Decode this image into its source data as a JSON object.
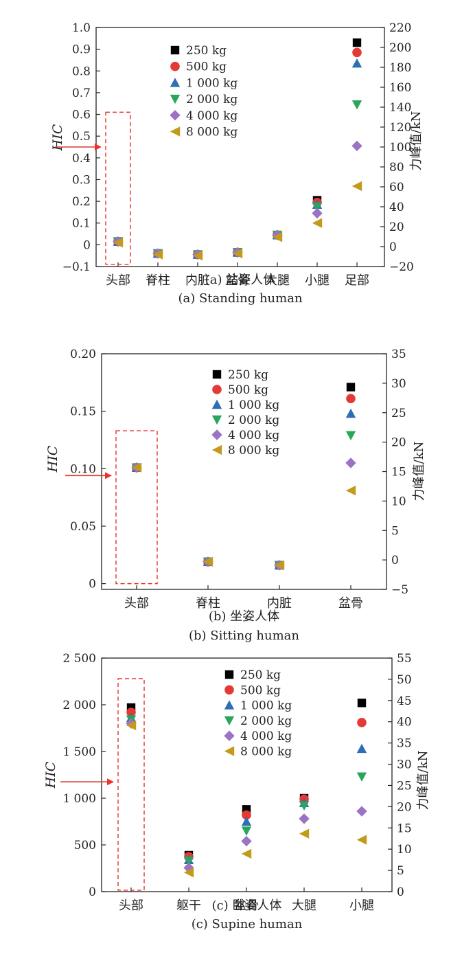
{
  "legend": [
    "250 kg",
    "500 kg",
    "1 000 kg",
    "2 000 kg",
    "4 000 kg",
    "8 000 kg"
  ],
  "marker_colors": [
    "#000000",
    "#e53935",
    "#2f6db5",
    "#2aa55c",
    "#9b72c4",
    "#c49a1c"
  ],
  "marker_shapes": [
    "square",
    "circle",
    "triangle-up",
    "triangle-down",
    "diamond",
    "triangle-left"
  ],
  "highlight_color": "#e8342a",
  "chart_data": [
    {
      "type": "scatter",
      "id": "a",
      "title_cn": "(a) 站姿人体",
      "title_en": "(a) Standing human",
      "ylabel": "HIC",
      "y2label": "力峰值/kN",
      "categories": [
        "头部",
        "脊柱",
        "内脏",
        "盆骨",
        "大腿",
        "小腿",
        "足部"
      ],
      "ylim": [
        -0.1,
        1.0
      ],
      "yticks": [
        -0.1,
        0,
        0.1,
        0.2,
        0.3,
        0.4,
        0.5,
        0.6,
        0.7,
        0.8,
        0.9,
        1.0
      ],
      "ytick_labels": [
        "−0.1",
        "0",
        "0.1",
        "0.2",
        "0.3",
        "0.4",
        "0.5",
        "0.6",
        "0.7",
        "0.8",
        "0.9",
        "1.0"
      ],
      "y2lim": [
        -20,
        220
      ],
      "y2ticks": [
        -20,
        0,
        20,
        40,
        60,
        80,
        100,
        120,
        140,
        160,
        180,
        200,
        220
      ],
      "y2tick_labels": [
        "−20",
        "0",
        "20",
        "40",
        "60",
        "80",
        "100",
        "120",
        "140",
        "160",
        "180",
        "200",
        "220"
      ],
      "arrow_at": 0.45,
      "highlight": {
        "category": 0,
        "y_from": -0.09,
        "y_to": 0.61
      },
      "series": [
        {
          "name": "250 kg",
          "values": [
            0.015,
            -0.04,
            -0.045,
            -0.035,
            0.045,
            0.205,
            0.93
          ]
        },
        {
          "name": "500 kg",
          "values": [
            0.015,
            -0.04,
            -0.045,
            -0.035,
            0.045,
            0.195,
            0.885
          ]
        },
        {
          "name": "1 000 kg",
          "values": [
            0.015,
            -0.04,
            -0.045,
            -0.035,
            0.045,
            0.185,
            0.835
          ]
        },
        {
          "name": "2 000 kg",
          "values": [
            0.015,
            -0.04,
            -0.045,
            -0.035,
            0.045,
            0.175,
            0.645
          ]
        },
        {
          "name": "4 000 kg",
          "values": [
            0.015,
            -0.04,
            -0.045,
            -0.035,
            0.045,
            0.145,
            0.455
          ]
        },
        {
          "name": "8 000 kg",
          "values": [
            0.01,
            -0.045,
            -0.05,
            -0.04,
            0.035,
            0.1,
            0.27
          ]
        }
      ]
    },
    {
      "type": "scatter",
      "id": "b",
      "title_cn": "(b) 坐姿人体",
      "title_en": "(b) Sitting human",
      "ylabel": "HIC",
      "y2label": "力峰值/kN",
      "categories": [
        "头部",
        "脊柱",
        "内脏",
        "盆骨"
      ],
      "ylim": [
        -0.005,
        0.2
      ],
      "yticks": [
        0,
        0.05,
        0.1,
        0.15,
        0.2
      ],
      "ytick_labels": [
        "0",
        "0.05",
        "0.10",
        "0.15",
        "0.20"
      ],
      "y2lim": [
        -5,
        35
      ],
      "y2ticks": [
        -5,
        0,
        5,
        10,
        15,
        20,
        25,
        30,
        35
      ],
      "y2tick_labels": [
        "−5",
        "0",
        "5",
        "10",
        "15",
        "20",
        "25",
        "30",
        "35"
      ],
      "arrow_at": 0.094,
      "highlight": {
        "category": 0,
        "y_from": 0.0,
        "y_to": 0.133
      },
      "series": [
        {
          "name": "250 kg",
          "values": [
            0.101,
            0.019,
            0.016,
            0.171
          ]
        },
        {
          "name": "500 kg",
          "values": [
            0.101,
            0.019,
            0.016,
            0.161
          ]
        },
        {
          "name": "1 000 kg",
          "values": [
            0.101,
            0.019,
            0.016,
            0.148
          ]
        },
        {
          "name": "2 000 kg",
          "values": [
            0.101,
            0.019,
            0.016,
            0.129
          ]
        },
        {
          "name": "4 000 kg",
          "values": [
            0.101,
            0.019,
            0.016,
            0.105
          ]
        },
        {
          "name": "8 000 kg",
          "values": [
            0.101,
            0.019,
            0.016,
            0.081
          ]
        }
      ]
    },
    {
      "type": "scatter",
      "id": "c",
      "title_cn": "(c) 卧姿人体",
      "title_en": "(c) Supine human",
      "ylabel": "HIC",
      "y2label": "力峰值/kN",
      "categories": [
        "头部",
        "躯干",
        "盆骨",
        "大腿",
        "小腿"
      ],
      "ylim": [
        0,
        2500
      ],
      "yticks": [
        0,
        500,
        1000,
        1500,
        2000,
        2500
      ],
      "ytick_labels": [
        "0",
        "500",
        "1 000",
        "1 500",
        "2 000",
        "2 500"
      ],
      "y2lim": [
        0,
        55
      ],
      "y2ticks": [
        0,
        5,
        10,
        15,
        20,
        25,
        30,
        35,
        40,
        45,
        50,
        55
      ],
      "y2tick_labels": [
        "0",
        "5",
        "10",
        "15",
        "20",
        "25",
        "30",
        "35",
        "40",
        "45",
        "50",
        "55"
      ],
      "arrow_at": 1175,
      "highlight": {
        "category": 0,
        "y_from": 15,
        "y_to": 2280
      },
      "series": [
        {
          "name": "250 kg",
          "values": [
            1970,
            390,
            880,
            1000,
            2020
          ]
        },
        {
          "name": "500 kg",
          "values": [
            1920,
            375,
            820,
            990,
            1810
          ]
        },
        {
          "name": "1 000 kg",
          "values": [
            1860,
            340,
            750,
            950,
            1530
          ]
        },
        {
          "name": "2 000 kg",
          "values": [
            1840,
            330,
            650,
            920,
            1230
          ]
        },
        {
          "name": "4 000 kg",
          "values": [
            1800,
            255,
            540,
            780,
            860
          ]
        },
        {
          "name": "8 000 kg",
          "values": [
            1780,
            205,
            405,
            620,
            555
          ]
        }
      ]
    }
  ]
}
